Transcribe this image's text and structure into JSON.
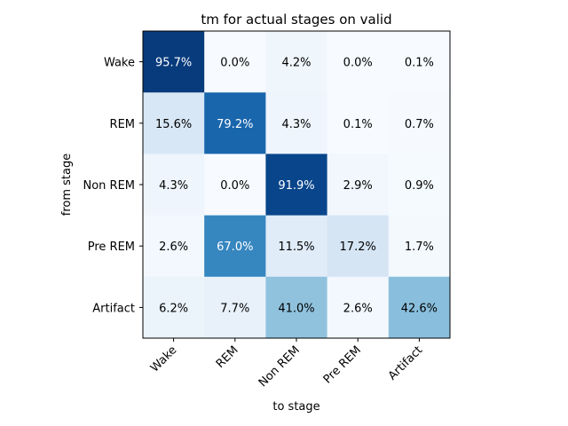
{
  "chart_data": {
    "type": "heatmap",
    "title": "tm for actual stages on valid",
    "xlabel": "to stage",
    "ylabel": "from stage",
    "x_categories": [
      "Wake",
      "REM",
      "Non REM",
      "Pre REM",
      "Artifact"
    ],
    "y_categories": [
      "Wake",
      "REM",
      "Non REM",
      "Pre REM",
      "Artifact"
    ],
    "values": [
      [
        95.7,
        0.0,
        4.2,
        0.0,
        0.1
      ],
      [
        15.6,
        79.2,
        4.3,
        0.1,
        0.7
      ],
      [
        4.3,
        0.0,
        91.9,
        2.9,
        0.9
      ],
      [
        2.6,
        67.0,
        11.5,
        17.2,
        1.7
      ],
      [
        6.2,
        7.7,
        41.0,
        2.6,
        42.6
      ]
    ],
    "labels": [
      [
        "95.7%",
        "0.0%",
        "4.2%",
        "0.0%",
        "0.1%"
      ],
      [
        "15.6%",
        "79.2%",
        "4.3%",
        "0.1%",
        "0.7%"
      ],
      [
        "4.3%",
        "0.0%",
        "91.9%",
        "2.9%",
        "0.9%"
      ],
      [
        "2.6%",
        "67.0%",
        "11.5%",
        "17.2%",
        "1.7%"
      ],
      [
        "6.2%",
        "7.7%",
        "41.0%",
        "2.6%",
        "42.6%"
      ]
    ],
    "value_range": [
      0,
      100
    ],
    "colormap": "Blues",
    "grid": false,
    "x_tick_rotation": "45 degrees"
  }
}
